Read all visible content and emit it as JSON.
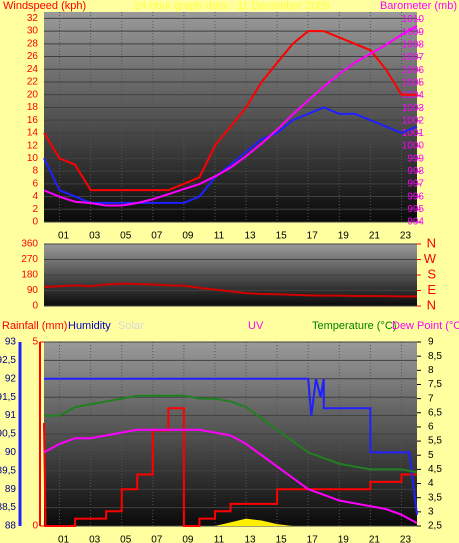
{
  "chart_data": [
    {
      "type": "line",
      "title": "24 hour graph data - 11 December 2009",
      "ylabel": "Windspeed (kph)",
      "y2label": "Barometer (mb)",
      "x": [
        0,
        1,
        2,
        3,
        4,
        5,
        6,
        7,
        8,
        9,
        10,
        11,
        12,
        13,
        14,
        15,
        16,
        17,
        18,
        19,
        20,
        21,
        22,
        23,
        24
      ],
      "xlim": [
        0,
        24
      ],
      "xticks": [
        {
          "value": 1,
          "label": "01"
        },
        {
          "value": 3,
          "label": "03"
        },
        {
          "value": 5,
          "label": "05"
        },
        {
          "value": 7,
          "label": "07"
        },
        {
          "value": 9,
          "label": "09"
        },
        {
          "value": 11,
          "label": "11"
        },
        {
          "value": 13,
          "label": "13"
        },
        {
          "value": 15,
          "label": "15"
        },
        {
          "value": 17,
          "label": "17"
        },
        {
          "value": 19,
          "label": "19"
        },
        {
          "value": 21,
          "label": "21"
        },
        {
          "value": 23,
          "label": "23"
        }
      ],
      "ylim": [
        0,
        33
      ],
      "yticks": [
        0,
        2,
        4,
        6,
        8,
        10,
        12,
        14,
        16,
        18,
        20,
        22,
        24,
        26,
        28,
        30,
        32
      ],
      "y2lim": [
        994,
        1010.6
      ],
      "y2ticks": [
        994,
        995,
        996,
        997,
        998,
        999,
        1000,
        1001,
        1002,
        1003,
        1004,
        1005,
        1006,
        1007,
        1008,
        1009,
        1010
      ],
      "series": [
        {
          "color": "#ff0000",
          "axis": "y",
          "values": [
            14,
            10,
            9,
            5,
            5,
            5,
            5,
            5,
            5,
            6,
            7,
            12,
            15,
            18,
            22,
            25,
            28,
            30,
            30,
            29,
            28,
            27,
            24,
            20,
            20
          ]
        },
        {
          "color": "#2020ff",
          "axis": "y",
          "values": [
            10,
            5,
            4,
            3,
            3,
            3,
            3,
            3,
            3,
            3,
            4,
            7,
            9,
            11,
            13,
            14,
            16,
            17,
            18,
            17,
            17,
            16,
            15,
            14,
            15
          ]
        },
        {
          "color": "#ff00ff",
          "axis": "y2",
          "values": [
            996.5,
            996,
            995.6,
            995.5,
            995.3,
            995.3,
            995.5,
            995.8,
            996.2,
            996.6,
            997,
            997.6,
            998.3,
            999.2,
            1000.2,
            1001.3,
            1002.5,
            1003.6,
            1004.7,
            1005.7,
            1006.6,
            1007.3,
            1008,
            1008.8,
            1009.5
          ]
        }
      ]
    },
    {
      "type": "line",
      "x": [
        0,
        1,
        2,
        3,
        4,
        5,
        6,
        7,
        8,
        9,
        10,
        11,
        12,
        13,
        14,
        15,
        16,
        17,
        18,
        19,
        20,
        21,
        22,
        23,
        24
      ],
      "xlim": [
        0,
        24
      ],
      "ylim": [
        0,
        360
      ],
      "yticks": [
        0,
        90,
        180,
        270,
        360
      ],
      "y2lim": [
        0,
        360
      ],
      "y2ticks": [
        {
          "value": 360,
          "label": "N"
        },
        {
          "value": 270,
          "label": "W"
        },
        {
          "value": 180,
          "label": "S"
        },
        {
          "value": 90,
          "label": "E"
        },
        {
          "value": 0,
          "label": "N"
        }
      ],
      "series": [
        {
          "color": "#d00000",
          "axis": "y",
          "values": [
            110,
            115,
            120,
            115,
            125,
            130,
            128,
            125,
            120,
            118,
            105,
            95,
            85,
            75,
            70,
            68,
            65,
            62,
            60,
            60,
            58,
            58,
            57,
            56,
            56
          ]
        }
      ]
    },
    {
      "type": "line",
      "annotations": [
        "UV"
      ],
      "x": [
        0,
        1,
        2,
        3,
        4,
        5,
        6,
        7,
        8,
        9,
        10,
        11,
        12,
        13,
        14,
        15,
        16,
        17,
        18,
        19,
        20,
        21,
        22,
        23,
        24
      ],
      "xlim": [
        0,
        24
      ],
      "xticks": [
        {
          "value": 1,
          "label": "01"
        },
        {
          "value": 3,
          "label": "03"
        },
        {
          "value": 5,
          "label": "05"
        },
        {
          "value": 7,
          "label": "07"
        },
        {
          "value": 9,
          "label": "09"
        },
        {
          "value": 11,
          "label": "11"
        },
        {
          "value": 13,
          "label": "13"
        },
        {
          "value": 15,
          "label": "15"
        },
        {
          "value": 17,
          "label": "17"
        },
        {
          "value": 19,
          "label": "19"
        },
        {
          "value": 21,
          "label": "21"
        },
        {
          "value": 23,
          "label": "23"
        }
      ],
      "ylim": [
        88,
        93
      ],
      "yticks": [
        88,
        {
          "value": 88.5,
          "label": "88,5"
        },
        89,
        {
          "value": 89.5,
          "label": "89,5"
        },
        90,
        {
          "value": 90.5,
          "label": "90,5"
        },
        91,
        {
          "value": 91.5,
          "label": "91,5"
        },
        92,
        {
          "value": 92.5,
          "label": "92,5"
        },
        93
      ],
      "y3lim": [
        0,
        5
      ],
      "y3ticks": [
        0,
        5
      ],
      "y2lim": [
        2.5,
        9
      ],
      "y2ticks": [
        {
          "value": 2.5,
          "label": "2,5"
        },
        3,
        {
          "value": 3.5,
          "label": "3,5"
        },
        4,
        {
          "value": 4.5,
          "label": "4,5"
        },
        5,
        {
          "value": 5.5,
          "label": "5,5"
        },
        6,
        {
          "value": 6.5,
          "label": "6,5"
        },
        7,
        {
          "value": 7.5,
          "label": "7,5"
        },
        8,
        {
          "value": 8.5,
          "label": "8,5"
        },
        9
      ],
      "series": [
        {
          "name": "Rainfall (mm)",
          "color": "#ff0000",
          "axis": "y3",
          "x": [
            0,
            0.1,
            2,
            2,
            4,
            4,
            5,
            5,
            6,
            6,
            7,
            7,
            8,
            8,
            9,
            9,
            10,
            10,
            11,
            11,
            12,
            12,
            15,
            15,
            21,
            21,
            23,
            23,
            24
          ],
          "values": [
            2.8,
            0,
            0,
            0.2,
            0.2,
            0.4,
            0.4,
            1,
            1,
            1.4,
            1.4,
            2.6,
            2.6,
            3.2,
            3.2,
            0,
            0,
            0.2,
            0.2,
            0.4,
            0.4,
            0.6,
            0.6,
            1,
            1,
            1.2,
            1.2,
            1.4,
            1.4
          ]
        },
        {
          "name": "Humidity",
          "color": "#2020ff",
          "axis": "y",
          "x": [
            0,
            17,
            17.2,
            17.5,
            17.8,
            18,
            18,
            21,
            21,
            23.5,
            24
          ],
          "values": [
            92,
            92,
            91,
            92,
            91.5,
            92,
            91.2,
            91.2,
            90,
            90,
            88.3
          ]
        },
        {
          "name": "Solar",
          "color": "#ffee00",
          "axis": "y3",
          "area": true,
          "x": [
            11,
            12,
            13,
            14,
            15,
            16
          ],
          "values": [
            0,
            0.1,
            0.2,
            0.15,
            0.05,
            0
          ]
        },
        {
          "name": "Temperature (°C)",
          "color": "#208020",
          "axis": "y2",
          "values": [
            6.4,
            6.4,
            6.7,
            6.8,
            6.9,
            7.0,
            7.1,
            7.1,
            7.1,
            7.1,
            7.0,
            7.0,
            6.9,
            6.7,
            6.3,
            5.9,
            5.5,
            5.1,
            4.9,
            4.7,
            4.6,
            4.5,
            4.5,
            4.5,
            4.4
          ]
        },
        {
          "name": "Dew Point (°C",
          "color": "#ff00ff",
          "axis": "y2",
          "values": [
            5.1,
            5.4,
            5.6,
            5.6,
            5.7,
            5.8,
            5.9,
            5.9,
            5.9,
            5.9,
            5.9,
            5.8,
            5.7,
            5.4,
            5.0,
            4.6,
            4.2,
            3.8,
            3.6,
            3.4,
            3.3,
            3.2,
            3.1,
            2.9,
            2.6
          ]
        }
      ]
    }
  ]
}
